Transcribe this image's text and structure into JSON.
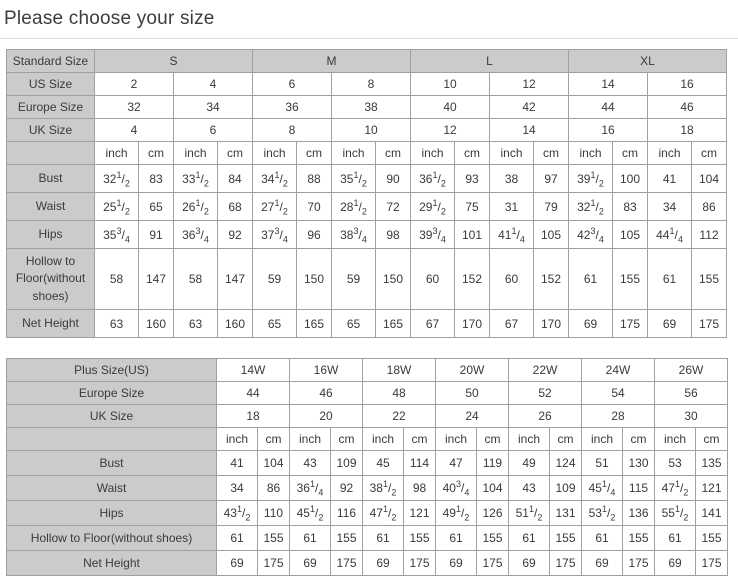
{
  "title": "Please choose your size",
  "units": [
    "inch",
    "cm"
  ],
  "standard_table": {
    "header_label": "Standard Size",
    "groups": [
      "S",
      "M",
      "L",
      "XL"
    ],
    "size_rows": [
      {
        "label": "US Size",
        "values": [
          "2",
          "4",
          "6",
          "8",
          "10",
          "12",
          "14",
          "16"
        ]
      },
      {
        "label": "Europe Size",
        "values": [
          "32",
          "34",
          "36",
          "38",
          "40",
          "42",
          "44",
          "46"
        ]
      },
      {
        "label": "UK Size",
        "values": [
          "4",
          "6",
          "8",
          "10",
          "12",
          "14",
          "16",
          "18"
        ]
      }
    ],
    "measurement_rows": [
      {
        "label": "Bust",
        "values": [
          "32 1/2",
          "83",
          "33 1/2",
          "84",
          "34 1/2",
          "88",
          "35 1/2",
          "90",
          "36 1/2",
          "93",
          "38",
          "97",
          "39 1/2",
          "100",
          "41",
          "104"
        ]
      },
      {
        "label": "Waist",
        "values": [
          "25 1/2",
          "65",
          "26 1/2",
          "68",
          "27 1/2",
          "70",
          "28 1/2",
          "72",
          "29 1/2",
          "75",
          "31",
          "79",
          "32 1/2",
          "83",
          "34",
          "86"
        ]
      },
      {
        "label": "Hips",
        "values": [
          "35 3/4",
          "91",
          "36 3/4",
          "92",
          "37 3/4",
          "96",
          "38 3/4",
          "98",
          "39 3/4",
          "101",
          "41 1/4",
          "105",
          "42 3/4",
          "105",
          "44 1/4",
          "112"
        ]
      },
      {
        "label": "Hollow to Floor(without shoes)",
        "values": [
          "58",
          "147",
          "58",
          "147",
          "59",
          "150",
          "59",
          "150",
          "60",
          "152",
          "60",
          "152",
          "61",
          "155",
          "61",
          "155"
        ]
      },
      {
        "label": "Net Height",
        "values": [
          "63",
          "160",
          "63",
          "160",
          "65",
          "165",
          "65",
          "165",
          "67",
          "170",
          "67",
          "170",
          "69",
          "175",
          "69",
          "175"
        ]
      }
    ]
  },
  "plus_table": {
    "size_rows": [
      {
        "label": "Plus Size(US)",
        "values": [
          "14W",
          "16W",
          "18W",
          "20W",
          "22W",
          "24W",
          "26W"
        ]
      },
      {
        "label": "Europe Size",
        "values": [
          "44",
          "46",
          "48",
          "50",
          "52",
          "54",
          "56"
        ]
      },
      {
        "label": "UK Size",
        "values": [
          "18",
          "20",
          "22",
          "24",
          "26",
          "28",
          "30"
        ]
      }
    ],
    "measurement_rows": [
      {
        "label": "Bust",
        "values": [
          "41",
          "104",
          "43",
          "109",
          "45",
          "114",
          "47",
          "119",
          "49",
          "124",
          "51",
          "130",
          "53",
          "135"
        ]
      },
      {
        "label": "Waist",
        "values": [
          "34",
          "86",
          "36 1/4",
          "92",
          "38 1/2",
          "98",
          "40 3/4",
          "104",
          "43",
          "109",
          "45 1/4",
          "115",
          "47 1/2",
          "121"
        ]
      },
      {
        "label": "Hips",
        "values": [
          "43 1/2",
          "110",
          "45 1/2",
          "116",
          "47 1/2",
          "121",
          "49 1/2",
          "126",
          "51 1/2",
          "131",
          "53 1/2",
          "136",
          "55 1/2",
          "141"
        ]
      },
      {
        "label": "Hollow to Floor(without shoes)",
        "values": [
          "61",
          "155",
          "61",
          "155",
          "61",
          "155",
          "61",
          "155",
          "61",
          "155",
          "61",
          "155",
          "61",
          "155"
        ]
      },
      {
        "label": "Net Height",
        "values": [
          "69",
          "175",
          "69",
          "175",
          "69",
          "175",
          "69",
          "175",
          "69",
          "175",
          "69",
          "175",
          "69",
          "175"
        ]
      }
    ]
  }
}
